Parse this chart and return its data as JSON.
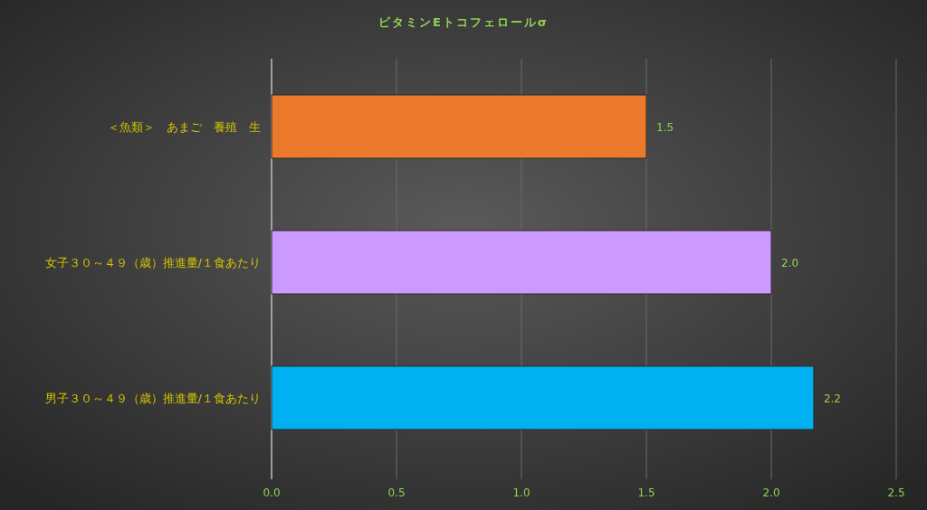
{
  "chart_data": {
    "type": "bar",
    "orientation": "horizontal",
    "title": "ビタミンEトコフェロールσ",
    "categories": [
      "＜魚類＞　あまご　養殖　生",
      "女子３０～４９（歳）推進量/１食あたり",
      "男子３０～４９（歳）推進量/１食あたり"
    ],
    "values": [
      1.5,
      2.0,
      2.17
    ],
    "colors": [
      "#ec7a2c",
      "#cc99ff",
      "#00b0f0"
    ],
    "value_labels": [
      "1.5",
      "2.0",
      "2.2"
    ],
    "xlim": [
      0,
      2.5
    ],
    "xticks": [
      {
        "value": 0,
        "label": "0.0"
      },
      {
        "value": 0.5,
        "label": "0.5"
      },
      {
        "value": 1,
        "label": "1.0"
      },
      {
        "value": 1.5,
        "label": "1.5"
      },
      {
        "value": 2,
        "label": "2.0"
      },
      {
        "value": 2.5,
        "label": "2.5"
      }
    ],
    "grid": "x"
  }
}
